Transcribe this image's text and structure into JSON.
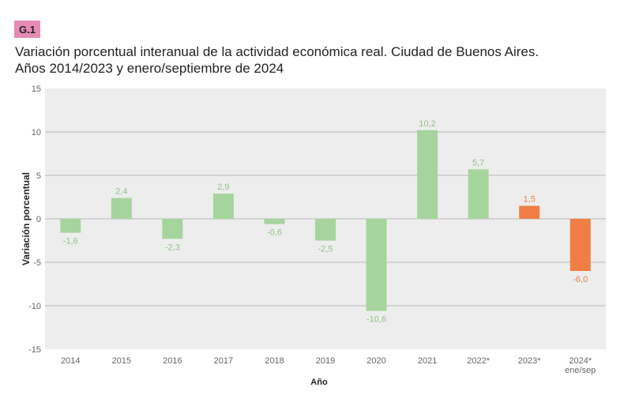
{
  "badge": "G.1",
  "title_line1": "Variación porcentual interanual de la actividad económica real. Ciudad de Buenos Aires.",
  "title_line2": "Años 2014/2023 y enero/septiembre de 2024",
  "colors": {
    "green": "#a6d49d",
    "orange": "#f07e44",
    "green_label": "#8cc584",
    "orange_label": "#ee7f45",
    "plot_bg": "#ededed",
    "grid": "#c4c4c4"
  },
  "chart_data": {
    "type": "bar",
    "xlabel": "Año",
    "ylabel": "Variación porcentual",
    "ylim": [
      -15,
      15
    ],
    "yticks": [
      15,
      10,
      5,
      0,
      -5,
      -10,
      -15
    ],
    "grid": true,
    "categories": [
      "2014",
      "2015",
      "2016",
      "2017",
      "2018",
      "2019",
      "2020",
      "2021",
      "2022*",
      "2023*",
      "2024*"
    ],
    "category_sublabels": [
      "",
      "",
      "",
      "",
      "",
      "",
      "",
      "",
      "",
      "",
      "ene/sep"
    ],
    "values": [
      -1.6,
      2.4,
      -2.3,
      2.9,
      -0.6,
      -2.5,
      -10.6,
      10.2,
      5.7,
      1.5,
      -6.0
    ],
    "data_labels": [
      "-1,6",
      "2,4",
      "-2,3",
      "2,9",
      "-0,6",
      "-2,5",
      "-10,6",
      "10,2",
      "5,7",
      "1,5",
      "-6,0"
    ],
    "bar_colors": [
      "green",
      "green",
      "green",
      "green",
      "green",
      "green",
      "green",
      "green",
      "green",
      "orange",
      "orange"
    ]
  }
}
